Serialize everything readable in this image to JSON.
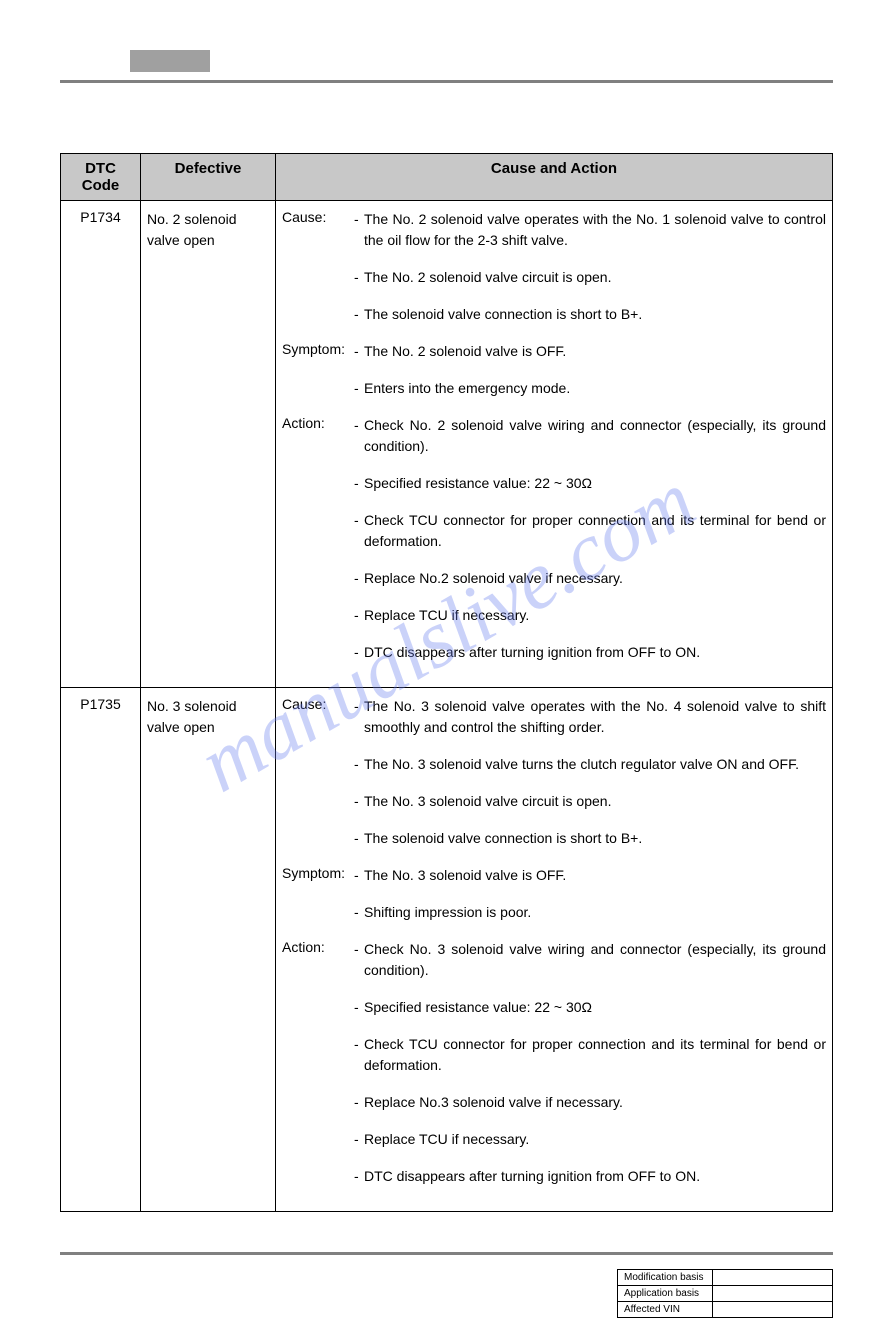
{
  "watermark_text": "manualslive.com",
  "table": {
    "headers": {
      "code": "DTC Code",
      "defective": "Defective",
      "cause_action": "Cause and Action"
    },
    "rows": [
      {
        "code": "P1734",
        "defective": "No. 2 solenoid valve open",
        "sections": [
          {
            "label": "Cause:",
            "items": [
              "The No. 2 solenoid valve operates with the No. 1 solenoid valve to control the oil flow for the 2-3 shift valve.",
              "The No. 2 solenoid valve circuit is open.",
              "The solenoid valve connection is short to B+."
            ]
          },
          {
            "label": "Symptom:",
            "items": [
              "The No. 2 solenoid valve is OFF.",
              "Enters into the emergency mode."
            ]
          },
          {
            "label": "Action:",
            "items": [
              "Check No. 2 solenoid valve wiring and connector (especially, its ground condition).",
              "Specified resistance value: 22 ~ 30Ω",
              "Check TCU connector for proper connection and its terminal for bend or deformation.",
              "Replace No.2 solenoid valve if necessary.",
              "Replace TCU if necessary.",
              "DTC disappears after turning ignition from OFF to ON."
            ]
          }
        ]
      },
      {
        "code": "P1735",
        "defective": "No. 3 solenoid valve open",
        "sections": [
          {
            "label": "Cause:",
            "items": [
              "The No. 3 solenoid valve operates with the No. 4 solenoid valve to shift smoothly and control the shifting order.",
              "The No. 3 solenoid valve turns the clutch regulator valve ON and OFF.",
              "The No. 3 solenoid valve circuit is open.",
              "The solenoid valve connection is short to B+."
            ]
          },
          {
            "label": "Symptom:",
            "items": [
              "The No. 3 solenoid valve is OFF.",
              "Shifting impression is poor."
            ]
          },
          {
            "label": "Action:",
            "items": [
              "Check No. 3 solenoid valve wiring and connector (especially, its ground condition).",
              "Specified resistance value: 22 ~ 30Ω",
              "Check TCU connector for proper connection and its terminal for bend or deformation.",
              "Replace No.3 solenoid valve if necessary.",
              "Replace TCU if necessary.",
              "DTC disappears after turning ignition from OFF to ON."
            ]
          }
        ]
      }
    ]
  },
  "footer": {
    "rows": [
      {
        "label": "Modification basis",
        "value": ""
      },
      {
        "label": "Application basis",
        "value": ""
      },
      {
        "label": "Affected VIN",
        "value": ""
      }
    ]
  }
}
